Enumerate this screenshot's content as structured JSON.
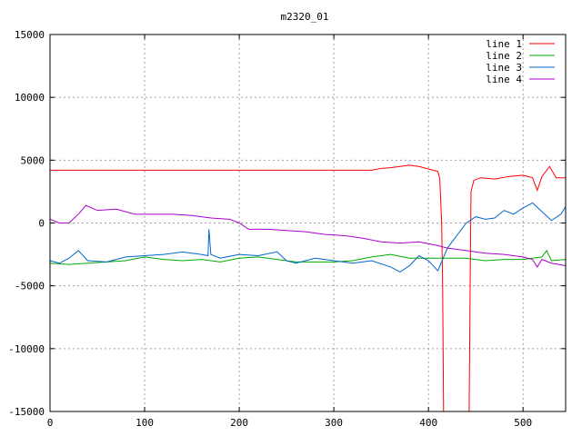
{
  "chart_data": {
    "type": "line",
    "title": "m2320_01",
    "xlabel": "",
    "ylabel": "",
    "xlim": [
      0,
      545
    ],
    "ylim": [
      -15000,
      15000
    ],
    "x_ticks": [
      0,
      100,
      200,
      300,
      400,
      500
    ],
    "y_ticks": [
      -15000,
      -10000,
      -5000,
      0,
      5000,
      10000,
      15000
    ],
    "grid": true,
    "legend_position": "top-right",
    "series": [
      {
        "name": "line 1",
        "color": "#ff0000",
        "points": [
          [
            0,
            4200
          ],
          [
            50,
            4200
          ],
          [
            100,
            4200
          ],
          [
            150,
            4200
          ],
          [
            200,
            4200
          ],
          [
            250,
            4200
          ],
          [
            300,
            4200
          ],
          [
            340,
            4200
          ],
          [
            350,
            4350
          ],
          [
            360,
            4400
          ],
          [
            370,
            4500
          ],
          [
            380,
            4600
          ],
          [
            390,
            4500
          ],
          [
            400,
            4300
          ],
          [
            405,
            4200
          ],
          [
            410,
            4100
          ],
          [
            412,
            3500
          ],
          [
            414,
            0
          ],
          [
            415,
            -5000
          ],
          [
            416,
            -15000
          ],
          [
            443,
            -15000
          ],
          [
            444,
            -6000
          ],
          [
            445,
            2500
          ],
          [
            448,
            3400
          ],
          [
            455,
            3600
          ],
          [
            470,
            3500
          ],
          [
            485,
            3700
          ],
          [
            500,
            3800
          ],
          [
            510,
            3600
          ],
          [
            515,
            2600
          ],
          [
            520,
            3700
          ],
          [
            528,
            4500
          ],
          [
            535,
            3600
          ],
          [
            545,
            3600
          ]
        ]
      },
      {
        "name": "line 2",
        "color": "#00aa00",
        "points": [
          [
            0,
            -3200
          ],
          [
            20,
            -3300
          ],
          [
            40,
            -3200
          ],
          [
            60,
            -3100
          ],
          [
            80,
            -3000
          ],
          [
            100,
            -2700
          ],
          [
            120,
            -2900
          ],
          [
            140,
            -3000
          ],
          [
            160,
            -2900
          ],
          [
            180,
            -3100
          ],
          [
            200,
            -2800
          ],
          [
            220,
            -2700
          ],
          [
            240,
            -2900
          ],
          [
            260,
            -3100
          ],
          [
            280,
            -3100
          ],
          [
            300,
            -3100
          ],
          [
            320,
            -3000
          ],
          [
            340,
            -2700
          ],
          [
            360,
            -2500
          ],
          [
            380,
            -2800
          ],
          [
            400,
            -2800
          ],
          [
            420,
            -2800
          ],
          [
            440,
            -2800
          ],
          [
            460,
            -3000
          ],
          [
            480,
            -2900
          ],
          [
            500,
            -2900
          ],
          [
            520,
            -2700
          ],
          [
            525,
            -2200
          ],
          [
            530,
            -3000
          ],
          [
            545,
            -2900
          ]
        ]
      },
      {
        "name": "line 3",
        "color": "#0066cc",
        "points": [
          [
            0,
            -3000
          ],
          [
            10,
            -3200
          ],
          [
            20,
            -2800
          ],
          [
            30,
            -2200
          ],
          [
            40,
            -3000
          ],
          [
            60,
            -3100
          ],
          [
            80,
            -2700
          ],
          [
            100,
            -2600
          ],
          [
            120,
            -2500
          ],
          [
            140,
            -2300
          ],
          [
            160,
            -2500
          ],
          [
            167,
            -2600
          ],
          [
            168,
            -500
          ],
          [
            170,
            -2500
          ],
          [
            180,
            -2800
          ],
          [
            200,
            -2500
          ],
          [
            220,
            -2600
          ],
          [
            240,
            -2300
          ],
          [
            250,
            -3000
          ],
          [
            260,
            -3200
          ],
          [
            280,
            -2800
          ],
          [
            300,
            -3000
          ],
          [
            320,
            -3200
          ],
          [
            340,
            -3000
          ],
          [
            360,
            -3500
          ],
          [
            370,
            -3900
          ],
          [
            380,
            -3400
          ],
          [
            390,
            -2600
          ],
          [
            400,
            -3000
          ],
          [
            410,
            -3800
          ],
          [
            420,
            -2000
          ],
          [
            430,
            -1000
          ],
          [
            440,
            0
          ],
          [
            450,
            500
          ],
          [
            460,
            300
          ],
          [
            470,
            400
          ],
          [
            480,
            1000
          ],
          [
            490,
            700
          ],
          [
            500,
            1200
          ],
          [
            510,
            1600
          ],
          [
            520,
            900
          ],
          [
            530,
            200
          ],
          [
            540,
            700
          ],
          [
            545,
            1300
          ]
        ]
      },
      {
        "name": "line 4",
        "color": "#aa00cc",
        "points": [
          [
            0,
            300
          ],
          [
            10,
            0
          ],
          [
            20,
            0
          ],
          [
            30,
            700
          ],
          [
            38,
            1400
          ],
          [
            50,
            1000
          ],
          [
            70,
            1100
          ],
          [
            90,
            700
          ],
          [
            110,
            700
          ],
          [
            130,
            700
          ],
          [
            150,
            600
          ],
          [
            170,
            400
          ],
          [
            190,
            300
          ],
          [
            200,
            0
          ],
          [
            210,
            -500
          ],
          [
            230,
            -500
          ],
          [
            250,
            -600
          ],
          [
            270,
            -700
          ],
          [
            290,
            -900
          ],
          [
            310,
            -1000
          ],
          [
            330,
            -1200
          ],
          [
            350,
            -1500
          ],
          [
            370,
            -1600
          ],
          [
            390,
            -1500
          ],
          [
            410,
            -1800
          ],
          [
            420,
            -2000
          ],
          [
            440,
            -2200
          ],
          [
            460,
            -2400
          ],
          [
            480,
            -2500
          ],
          [
            500,
            -2700
          ],
          [
            510,
            -2900
          ],
          [
            515,
            -3500
          ],
          [
            520,
            -2900
          ],
          [
            530,
            -3200
          ],
          [
            545,
            -3400
          ]
        ]
      }
    ]
  }
}
